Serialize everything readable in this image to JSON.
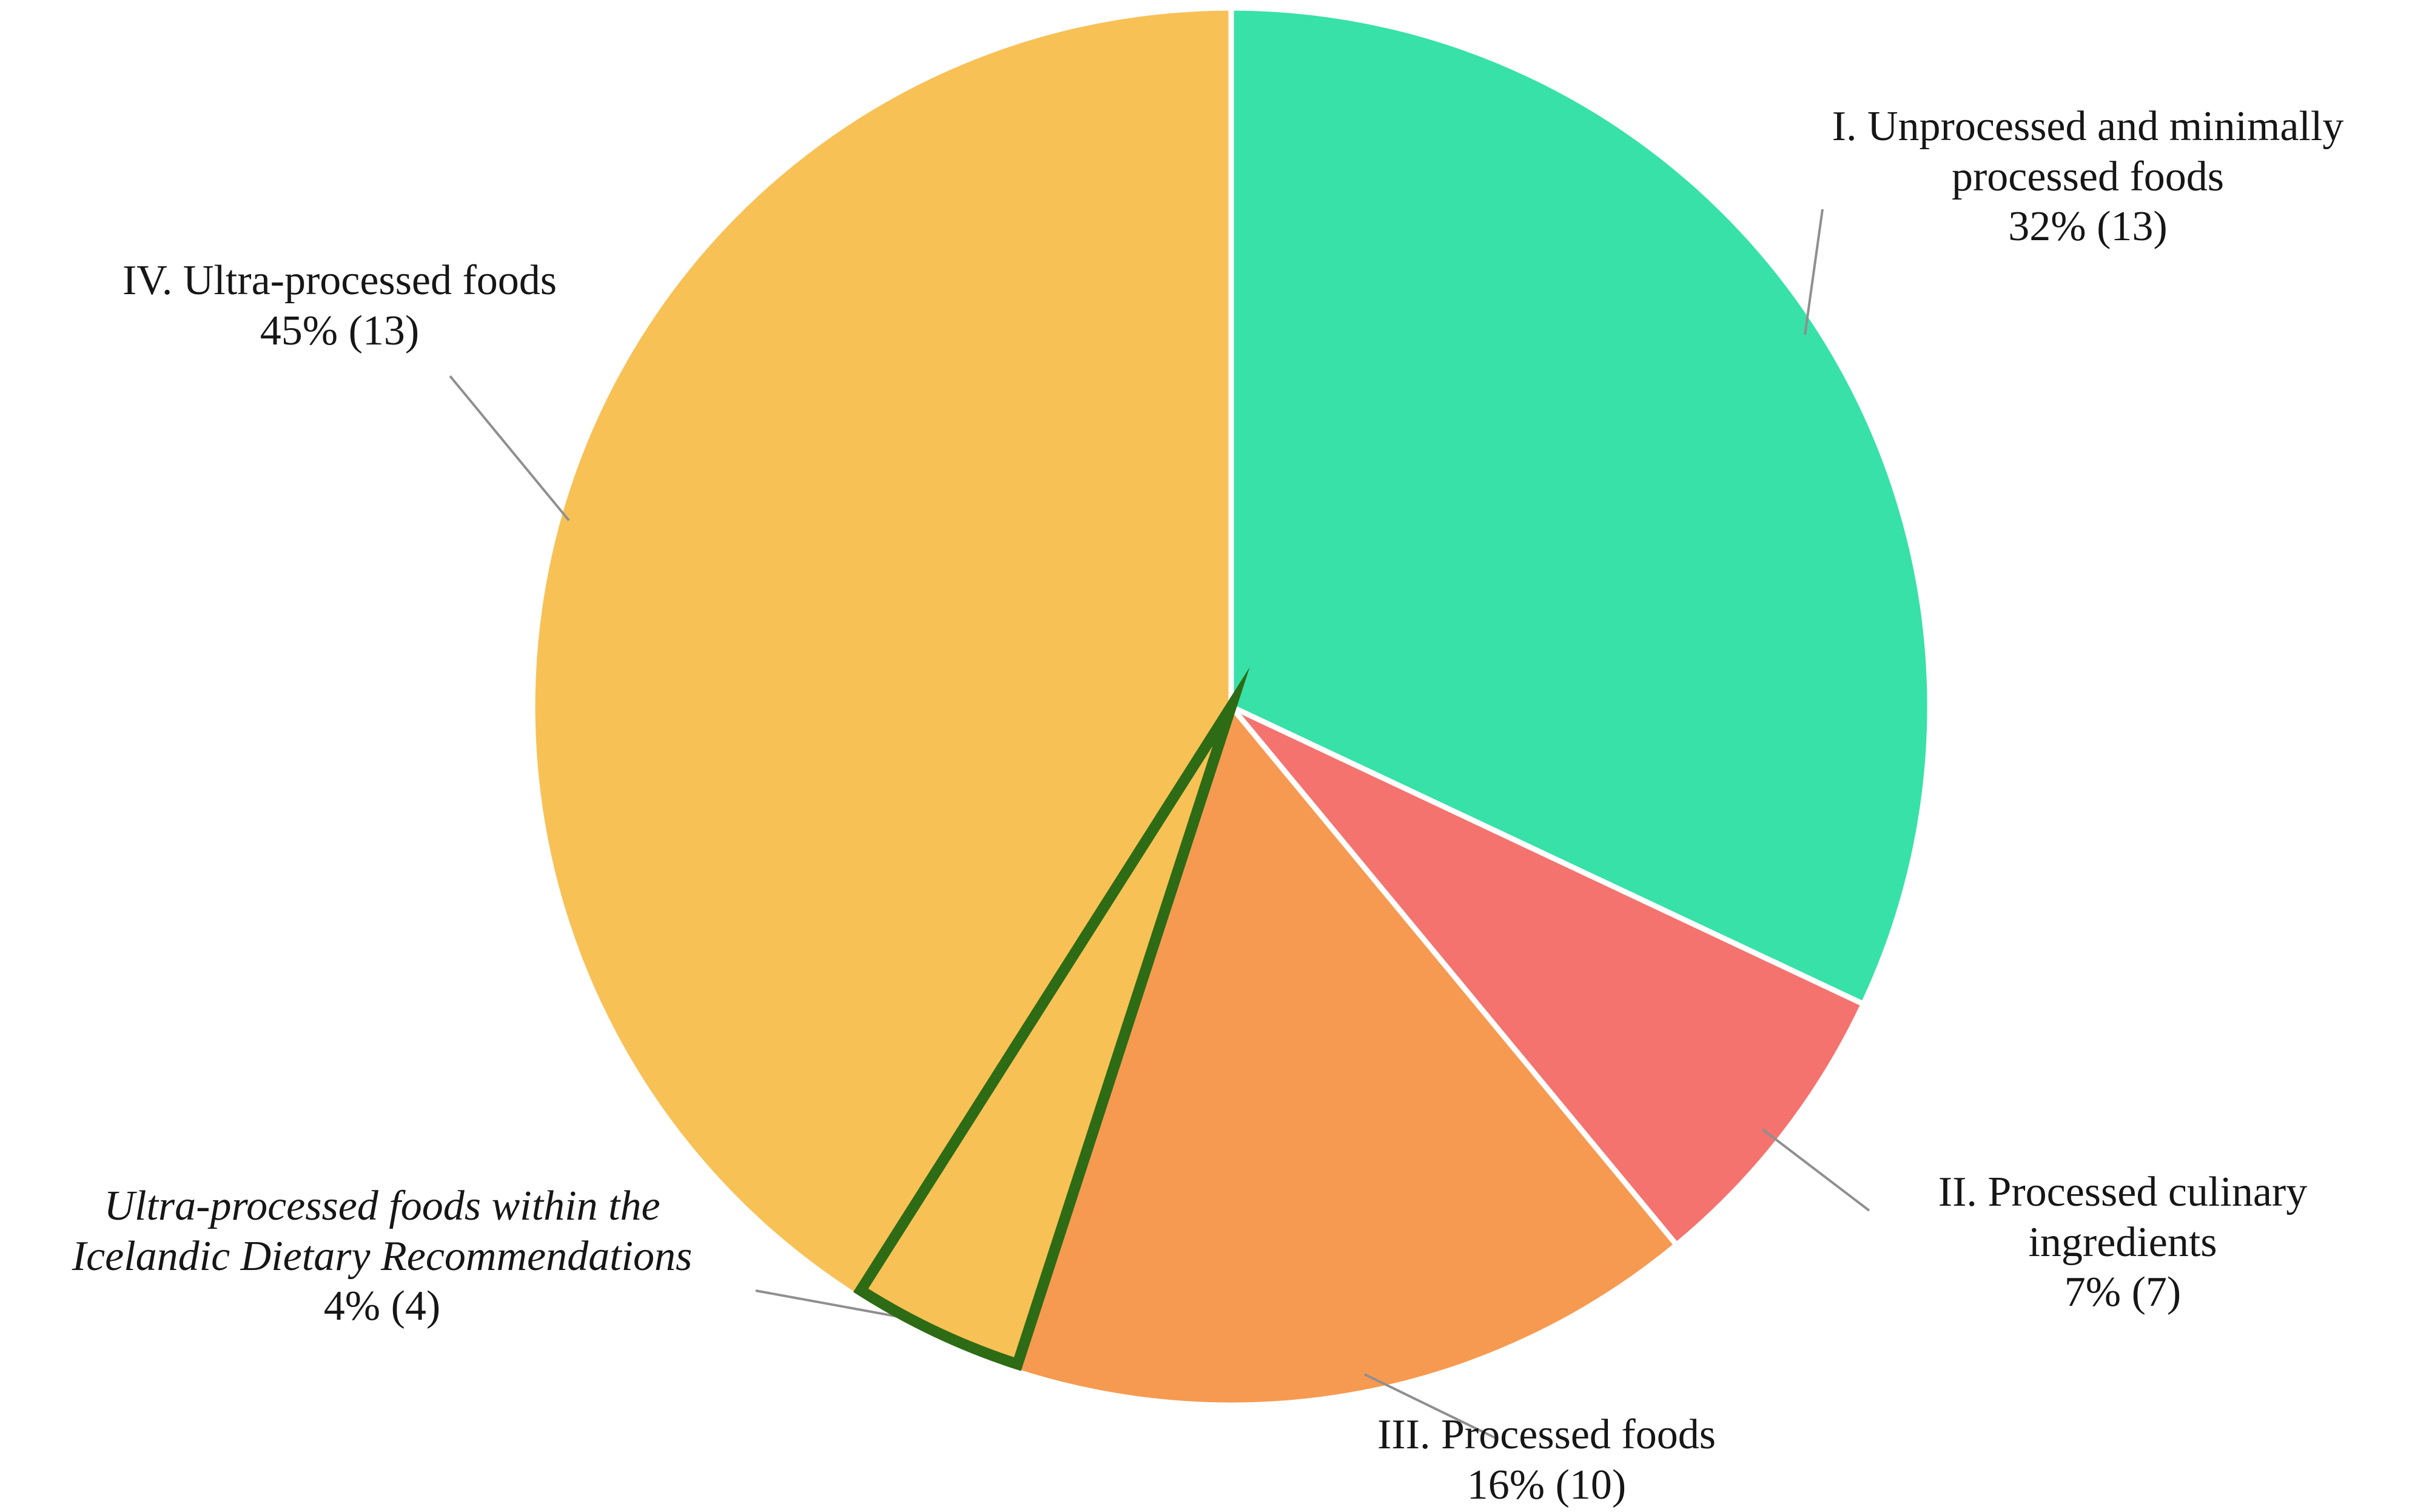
{
  "chart_data": {
    "type": "pie",
    "title": "",
    "start_angle_deg": 0,
    "direction": "clockwise",
    "background": "#ffffff",
    "separator_color": "#ffffff",
    "leader_line_color": "#8f8f8f",
    "text_color": "#161616",
    "slices": [
      {
        "label": "I. Unprocessed and minimally processed foods",
        "label_lines": [
          "I. Unprocessed and minimally",
          "processed foods"
        ],
        "pct_label": "32% (13)",
        "value": 32,
        "count": 13,
        "color": "#37e1a7"
      },
      {
        "label": "II. Processed culinary ingredients",
        "label_lines": [
          "II. Processed culinary",
          "ingredients"
        ],
        "pct_label": "7% (7)",
        "value": 7,
        "count": 7,
        "color": "#f4736f"
      },
      {
        "label": "III. Processed foods",
        "label_lines": [
          "III. Processed foods"
        ],
        "pct_label": "16% (10)",
        "value": 16,
        "count": 10,
        "color": "#f69a51"
      },
      {
        "label": "IV. Ultra-processed foods",
        "label_lines": [
          "IV. Ultra-processed foods"
        ],
        "pct_label": "45% (13)",
        "value": 45,
        "count": 13,
        "color": "#f8c156"
      }
    ],
    "highlight": {
      "label": "Ultra-processed foods within the Icelandic Dietary Recommendations",
      "label_lines": [
        "Ultra-processed foods within the",
        "Icelandic Dietary Recommendations"
      ],
      "pct_label": "4% (4)",
      "value": 4,
      "count": 4,
      "part_of": "IV. Ultra-processed foods",
      "outline_color": "#2e6b15",
      "fill_color": "#f8c156"
    }
  }
}
